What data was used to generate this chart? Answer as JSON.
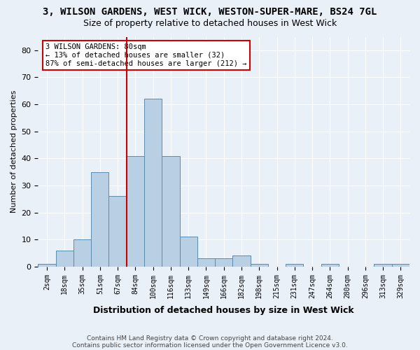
{
  "title": "3, WILSON GARDENS, WEST WICK, WESTON-SUPER-MARE, BS24 7GL",
  "subtitle": "Size of property relative to detached houses in West Wick",
  "xlabel": "Distribution of detached houses by size in West Wick",
  "ylabel": "Number of detached properties",
  "bin_labels": [
    "2sqm",
    "18sqm",
    "35sqm",
    "51sqm",
    "67sqm",
    "84sqm",
    "100sqm",
    "116sqm",
    "133sqm",
    "149sqm",
    "166sqm",
    "182sqm",
    "198sqm",
    "215sqm",
    "231sqm",
    "247sqm",
    "264sqm",
    "280sqm",
    "296sqm",
    "313sqm",
    "329sqm"
  ],
  "bar_values": [
    1,
    6,
    10,
    35,
    26,
    41,
    62,
    41,
    11,
    3,
    3,
    4,
    1,
    0,
    1,
    0,
    1,
    0,
    0,
    1,
    1
  ],
  "bar_color": "#b8cfe4",
  "bar_edge_color": "#5a8bb0",
  "vline_x": 4.5,
  "annotation_line1": "3 WILSON GARDENS: 80sqm",
  "annotation_line2": "← 13% of detached houses are smaller (32)",
  "annotation_line3": "87% of semi-detached houses are larger (212) →",
  "annotation_box_color": "#ffffff",
  "annotation_border_color": "#cc0000",
  "vline_color": "#cc0000",
  "footnote1": "Contains HM Land Registry data © Crown copyright and database right 2024.",
  "footnote2": "Contains public sector information licensed under the Open Government Licence v3.0.",
  "background_color": "#eaf0f8",
  "plot_background": "#eaf0f8",
  "yticks": [
    0,
    10,
    20,
    30,
    40,
    50,
    60,
    70,
    80
  ],
  "ylim": [
    0,
    85
  ]
}
